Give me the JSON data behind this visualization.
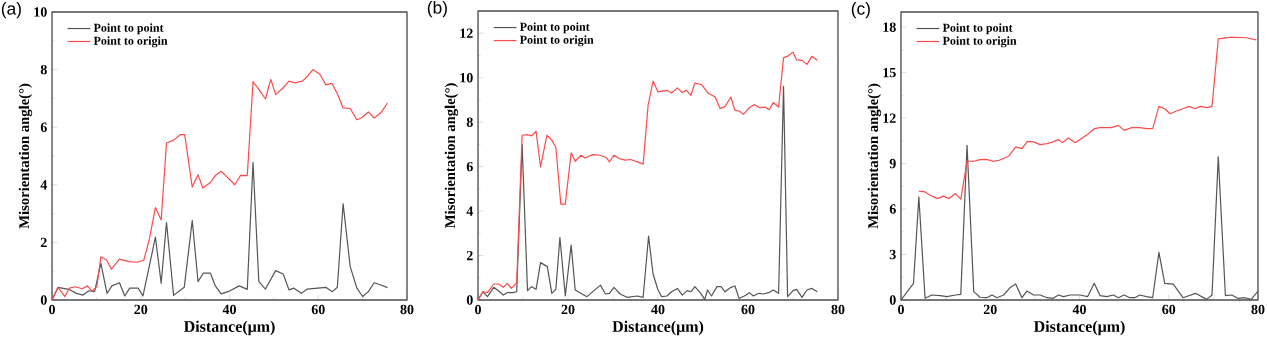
{
  "chart_data": [
    {
      "type": "line",
      "title": "(a)",
      "xlabel": "Distance(μm)",
      "ylabel": "Misorientation angle(°)",
      "xlim": [
        0,
        80
      ],
      "ylim": [
        0,
        10
      ],
      "xticks": [
        0,
        20,
        40,
        60,
        80
      ],
      "yticks": [
        0,
        2,
        4,
        6,
        8,
        10
      ],
      "legend": "top left",
      "series": [
        {
          "name": "Point to point",
          "color": "#555555",
          "x": [
            0,
            1.35,
            3.8,
            5.5,
            7,
            8.3,
            9.6,
            11,
            12.4,
            13.5,
            15.2,
            16.4,
            17.5,
            19.4,
            20.5,
            23.3,
            24.6,
            25.8,
            27.4,
            29.8,
            31.6,
            32.9,
            34.1,
            35.7,
            36.8,
            38.1,
            40,
            42.2,
            44,
            45.3,
            46.6,
            48.1,
            50.4,
            52.1,
            53.4,
            54.5,
            56.2,
            57.5,
            61.7,
            63.2,
            64.3,
            65.6,
            67.2,
            68.7,
            70,
            71.3,
            72.6,
            74.1,
            75.6
          ],
          "values": [
            0,
            0.44,
            0.37,
            0.23,
            0.17,
            0.32,
            0.29,
            1.28,
            0.23,
            0.49,
            0.6,
            0.14,
            0.41,
            0.41,
            0.14,
            2.18,
            0.58,
            2.69,
            0.16,
            0.44,
            2.76,
            0.64,
            0.93,
            0.93,
            0.49,
            0.21,
            0.31,
            0.49,
            0.37,
            4.78,
            0.64,
            0.38,
            1.02,
            0.9,
            0.35,
            0.41,
            0.23,
            0.38,
            0.44,
            0.29,
            0.44,
            3.34,
            1.16,
            0.41,
            0.12,
            0.29,
            0.6,
            0.52,
            0.43
          ]
        },
        {
          "name": "Point to origin",
          "color": "#ff4a4a",
          "x": [
            0,
            1.35,
            2.9,
            3.9,
            5.3,
            6.8,
            8,
            9,
            10.1,
            11,
            12.3,
            13.4,
            15.2,
            17.3,
            19.3,
            20.7,
            21.9,
            23.3,
            24.6,
            25.8,
            27.4,
            28.9,
            29.9,
            31.6,
            32.9,
            34,
            35.7,
            36.8,
            38.1,
            39.3,
            41.2,
            42.5,
            44,
            45.3,
            46.6,
            48.1,
            49.3,
            50.4,
            52.1,
            53.4,
            54.7,
            56.4,
            57.6,
            58.8,
            60.4,
            61.7,
            63.1,
            64.3,
            65.6,
            67.2,
            68.7,
            69.7,
            71.3,
            72.6,
            74.1,
            75.6
          ],
          "values": [
            0,
            0.44,
            0.12,
            0.41,
            0.46,
            0.39,
            0.49,
            0.31,
            0.46,
            1.5,
            1.39,
            1.07,
            1.42,
            1.33,
            1.31,
            1.39,
            2.09,
            3.21,
            2.78,
            5.45,
            5.55,
            5.74,
            5.74,
            3.92,
            4.35,
            3.89,
            4.08,
            4.32,
            4.47,
            4.29,
            4.0,
            4.33,
            4.32,
            7.58,
            7.31,
            6.98,
            7.66,
            7.13,
            7.37,
            7.6,
            7.54,
            7.6,
            7.77,
            8.0,
            7.83,
            7.47,
            7.52,
            7.16,
            6.67,
            6.65,
            6.26,
            6.32,
            6.53,
            6.32,
            6.5,
            6.84
          ]
        }
      ]
    },
    {
      "type": "line",
      "title": "(b)",
      "xlabel": "Distance(μm)",
      "ylabel": "Misorientation angle(°)",
      "xlim": [
        0,
        80
      ],
      "ylim": [
        0,
        13
      ],
      "xticks": [
        0,
        20,
        40,
        60,
        80
      ],
      "yticks": [
        0,
        2,
        4,
        6,
        8,
        10,
        12
      ],
      "legend": "top left",
      "series": [
        {
          "name": "Point to point",
          "color": "#555555",
          "x": [
            0,
            1.1,
            2.1,
            3.5,
            4.8,
            5.6,
            6.5,
            7.8,
            8.6,
            9.8,
            11,
            11.9,
            12.9,
            13.9,
            15.4,
            16.4,
            17.3,
            18.2,
            19.4,
            20.7,
            21.6,
            24.2,
            27.2,
            28.3,
            29.2,
            30.2,
            31.6,
            33.1,
            35.4,
            36.7,
            37.9,
            38.9,
            40,
            40.8,
            42,
            43,
            44.3,
            45.4,
            46.5,
            47.3,
            48.2,
            49.5,
            50.4,
            51,
            51.9,
            53.1,
            54,
            54.9,
            56.2,
            57.1,
            58,
            59.2,
            60.3,
            61.2,
            62.4,
            63.5,
            64.7,
            65.6,
            66.8,
            67.9,
            68.8,
            70,
            70.8,
            72,
            73.1,
            74.2,
            75.4
          ],
          "values": [
            0,
            0.37,
            0.15,
            0.57,
            0.37,
            0.22,
            0.33,
            0.33,
            0.37,
            7.0,
            0.42,
            0.6,
            0.48,
            1.68,
            1.5,
            0.3,
            0.48,
            2.81,
            0.18,
            2.47,
            0.45,
            0.15,
            0.67,
            0.27,
            0.3,
            0.57,
            0.27,
            0.12,
            0.18,
            0.12,
            2.87,
            1.17,
            0.45,
            0.15,
            0.18,
            0.37,
            0.52,
            0.22,
            0.42,
            0.37,
            0.6,
            0.3,
            0.03,
            0.45,
            0.18,
            0.6,
            0.6,
            0.37,
            0.57,
            0.63,
            0.07,
            0.18,
            0.33,
            0.18,
            0.3,
            0.27,
            0.34,
            0.45,
            0.3,
            9.61,
            0.15,
            0.42,
            0.48,
            0.12,
            0.45,
            0.52,
            0.37
          ]
        },
        {
          "name": "Point to origin",
          "color": "#ff4a4a",
          "x": [
            0,
            1.1,
            2.1,
            3.5,
            4.6,
            5.6,
            6.5,
            7.4,
            8.6,
            9.8,
            11,
            11.9,
            12.9,
            13.9,
            15.3,
            16.4,
            17.3,
            18.4,
            19.4,
            20.7,
            21.6,
            22.9,
            23.8,
            25.5,
            27.2,
            28.5,
            29.2,
            30.2,
            31.4,
            32.7,
            33.9,
            35.4,
            36.7,
            37.8,
            38.9,
            40,
            42,
            43,
            44.3,
            45.4,
            46.3,
            47.3,
            48.2,
            49.7,
            51.1,
            52.7,
            53.8,
            54.9,
            56.2,
            57.1,
            58,
            59,
            60.3,
            61.4,
            62.6,
            63.8,
            64.7,
            65.6,
            66.8,
            67.9,
            68.8,
            70,
            70.8,
            72,
            73.1,
            74.2,
            75.4
          ],
          "values": [
            0,
            0.37,
            0.33,
            0.72,
            0.72,
            0.57,
            0.75,
            0.52,
            0.78,
            7.41,
            7.44,
            7.38,
            7.59,
            5.99,
            7.41,
            7.19,
            6.86,
            4.31,
            4.31,
            6.62,
            6.24,
            6.51,
            6.39,
            6.54,
            6.51,
            6.41,
            6.21,
            6.51,
            6.36,
            6.29,
            6.32,
            6.21,
            6.11,
            8.76,
            9.85,
            9.36,
            9.43,
            9.31,
            9.54,
            9.33,
            9.43,
            9.21,
            9.76,
            9.69,
            9.31,
            9.13,
            8.61,
            8.71,
            9.13,
            8.53,
            8.5,
            8.35,
            8.65,
            8.79,
            8.65,
            8.68,
            8.56,
            8.88,
            8.68,
            10.9,
            10.96,
            11.15,
            10.8,
            10.78,
            10.6,
            10.96,
            10.78
          ]
        }
      ]
    },
    {
      "type": "line",
      "title": "(c)",
      "xlabel": "Distance(μm)",
      "ylabel": "Misorientation angle(°)",
      "xlim": [
        0,
        80
      ],
      "ylim": [
        0,
        19
      ],
      "xticks": [
        0,
        20,
        40,
        60,
        80
      ],
      "yticks": [
        0,
        3,
        6,
        9,
        12,
        15,
        18
      ],
      "legend": "top left",
      "series": [
        {
          "name": "Point to point",
          "color": "#555555",
          "x": [
            0,
            2.8,
            4,
            5.4,
            6.9,
            8.8,
            10.3,
            12.2,
            13.4,
            14.8,
            16.3,
            17.7,
            19.2,
            20.4,
            21.5,
            23,
            24.5,
            25.7,
            27.1,
            28.2,
            29.7,
            31.2,
            32.7,
            34.1,
            35.3,
            36.4,
            37.9,
            40.1,
            41.8,
            43.3,
            44.6,
            46.1,
            47.6,
            48.7,
            50,
            51.3,
            52.4,
            53.5,
            55,
            56.4,
            57.8,
            59.1,
            61,
            63.2,
            66,
            68.5,
            69.7,
            71.1,
            72.7,
            74.1,
            75.5,
            77,
            78.5,
            80
          ],
          "values": [
            0,
            1.1,
            6.8,
            0.11,
            0.33,
            0.29,
            0.22,
            0.33,
            0.37,
            10.2,
            0.55,
            0.18,
            0.15,
            0.33,
            0.15,
            0.33,
            0.83,
            1.05,
            0.15,
            0.59,
            0.33,
            0.33,
            0.15,
            0.11,
            0.33,
            0.22,
            0.33,
            0.33,
            0.22,
            1.1,
            0.29,
            0.22,
            0.33,
            0.15,
            0.33,
            0.15,
            0.15,
            0.33,
            0.22,
            0.15,
            3.14,
            1.1,
            1.05,
            0.15,
            0.44,
            0.04,
            0.33,
            9.44,
            0.29,
            0.33,
            0.11,
            0.15,
            0.04,
            0.59
          ]
        },
        {
          "name": "Point to origin",
          "color": "#ff4a4a",
          "x": [
            4,
            5.4,
            6.9,
            8.2,
            9.5,
            10.8,
            12.2,
            13.4,
            14.8,
            16.3,
            17.7,
            19.2,
            20.6,
            22,
            24.1,
            25.7,
            27.1,
            28.3,
            29.7,
            31.2,
            32.7,
            34.1,
            35.3,
            36.2,
            37.5,
            39,
            40.1,
            41.8,
            43.3,
            44.6,
            47.2,
            48.7,
            50,
            51.7,
            53.5,
            55,
            56.4,
            57.8,
            59.1,
            60.3,
            61.7,
            63.2,
            64.6,
            65.9,
            67.1,
            68.5,
            69.7,
            71.1,
            74.1,
            77.4,
            79.6
          ],
          "values": [
            7.18,
            7.13,
            6.85,
            6.69,
            6.85,
            6.69,
            7.02,
            6.65,
            9.17,
            9.15,
            9.26,
            9.28,
            9.15,
            9.22,
            9.48,
            10.1,
            9.99,
            10.47,
            10.43,
            10.25,
            10.32,
            10.43,
            10.58,
            10.38,
            10.69,
            10.38,
            10.58,
            10.91,
            11.3,
            11.37,
            11.37,
            11.52,
            11.19,
            11.37,
            11.37,
            11.3,
            11.3,
            12.77,
            12.62,
            12.29,
            12.47,
            12.62,
            12.77,
            12.62,
            12.77,
            12.69,
            12.77,
            17.23,
            17.34,
            17.3,
            17.16
          ]
        }
      ]
    }
  ]
}
